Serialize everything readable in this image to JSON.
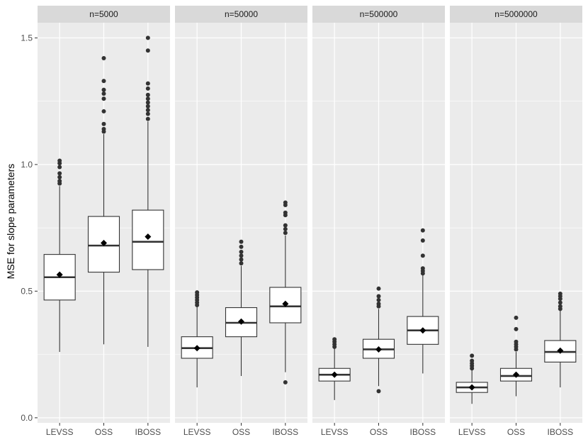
{
  "chart_data": {
    "type": "boxplot",
    "ylabel": "MSE for slope parameters",
    "xlabel": "",
    "ylim": [
      -0.02,
      1.56
    ],
    "yticks": [
      0.0,
      0.5,
      1.0,
      1.5
    ],
    "ytick_labels": [
      "0.0",
      "0.5",
      "1.0",
      "1.5"
    ],
    "categories": [
      "LEVSS",
      "OSS",
      "IBOSS"
    ],
    "colors": {
      "panel_bg": "#ebebeb",
      "strip_bg": "#d9d9d9",
      "grid": "#ffffff",
      "box_fill": "#ffffff",
      "box_line": "#333333",
      "outlier": "#333333",
      "mean": "#000000"
    },
    "panels": [
      {
        "title": "n=5000",
        "boxes": [
          {
            "category": "LEVSS",
            "whisker_low": 0.26,
            "q1": 0.465,
            "median": 0.555,
            "q3": 0.645,
            "whisker_high": 0.915,
            "mean": 0.565,
            "outliers": [
              0.925,
              0.935,
              0.95,
              0.965,
              0.99,
              1.005,
              1.015
            ]
          },
          {
            "category": "OSS",
            "whisker_low": 0.29,
            "q1": 0.575,
            "median": 0.68,
            "q3": 0.795,
            "whisker_high": 1.12,
            "mean": 0.69,
            "outliers": [
              1.13,
              1.14,
              1.16,
              1.21,
              1.26,
              1.28,
              1.295,
              1.33,
              1.42
            ]
          },
          {
            "category": "IBOSS",
            "whisker_low": 0.28,
            "q1": 0.585,
            "median": 0.695,
            "q3": 0.82,
            "whisker_high": 1.17,
            "mean": 0.715,
            "outliers": [
              1.18,
              1.2,
              1.215,
              1.23,
              1.245,
              1.26,
              1.275,
              1.3,
              1.32,
              1.45,
              1.5
            ]
          }
        ]
      },
      {
        "title": "n=50000",
        "boxes": [
          {
            "category": "LEVSS",
            "whisker_low": 0.12,
            "q1": 0.235,
            "median": 0.275,
            "q3": 0.32,
            "whisker_high": 0.44,
            "mean": 0.275,
            "outliers": [
              0.445,
              0.455,
              0.465,
              0.475,
              0.485,
              0.495
            ]
          },
          {
            "category": "OSS",
            "whisker_low": 0.165,
            "q1": 0.32,
            "median": 0.375,
            "q3": 0.435,
            "whisker_high": 0.6,
            "mean": 0.38,
            "outliers": [
              0.61,
              0.625,
              0.64,
              0.655,
              0.675,
              0.695
            ]
          },
          {
            "category": "IBOSS",
            "whisker_low": 0.18,
            "q1": 0.375,
            "median": 0.44,
            "q3": 0.515,
            "whisker_high": 0.72,
            "mean": 0.45,
            "outliers": [
              0.14,
              0.73,
              0.745,
              0.76,
              0.8,
              0.81,
              0.84,
              0.85
            ]
          }
        ]
      },
      {
        "title": "n=500000",
        "boxes": [
          {
            "category": "LEVSS",
            "whisker_low": 0.07,
            "q1": 0.145,
            "median": 0.17,
            "q3": 0.195,
            "whisker_high": 0.275,
            "mean": 0.17,
            "outliers": [
              0.28,
              0.29,
              0.3,
              0.31
            ]
          },
          {
            "category": "OSS",
            "whisker_low": 0.125,
            "q1": 0.235,
            "median": 0.27,
            "q3": 0.31,
            "whisker_high": 0.43,
            "mean": 0.27,
            "outliers": [
              0.105,
              0.44,
              0.45,
              0.465,
              0.48,
              0.51
            ]
          },
          {
            "category": "IBOSS",
            "whisker_low": 0.175,
            "q1": 0.29,
            "median": 0.345,
            "q3": 0.4,
            "whisker_high": 0.565,
            "mean": 0.345,
            "outliers": [
              0.57,
              0.58,
              0.59,
              0.64,
              0.7,
              0.74
            ]
          }
        ]
      },
      {
        "title": "n=5000000",
        "boxes": [
          {
            "category": "LEVSS",
            "whisker_low": 0.055,
            "q1": 0.1,
            "median": 0.12,
            "q3": 0.14,
            "whisker_high": 0.19,
            "mean": 0.12,
            "outliers": [
              0.195,
              0.205,
              0.215,
              0.225,
              0.245
            ]
          },
          {
            "category": "OSS",
            "whisker_low": 0.085,
            "q1": 0.145,
            "median": 0.165,
            "q3": 0.195,
            "whisker_high": 0.26,
            "mean": 0.17,
            "outliers": [
              0.27,
              0.28,
              0.29,
              0.3,
              0.35,
              0.395
            ]
          },
          {
            "category": "IBOSS",
            "whisker_low": 0.12,
            "q1": 0.22,
            "median": 0.26,
            "q3": 0.305,
            "whisker_high": 0.425,
            "mean": 0.265,
            "outliers": [
              0.43,
              0.44,
              0.455,
              0.47,
              0.48,
              0.49
            ]
          }
        ]
      }
    ]
  }
}
